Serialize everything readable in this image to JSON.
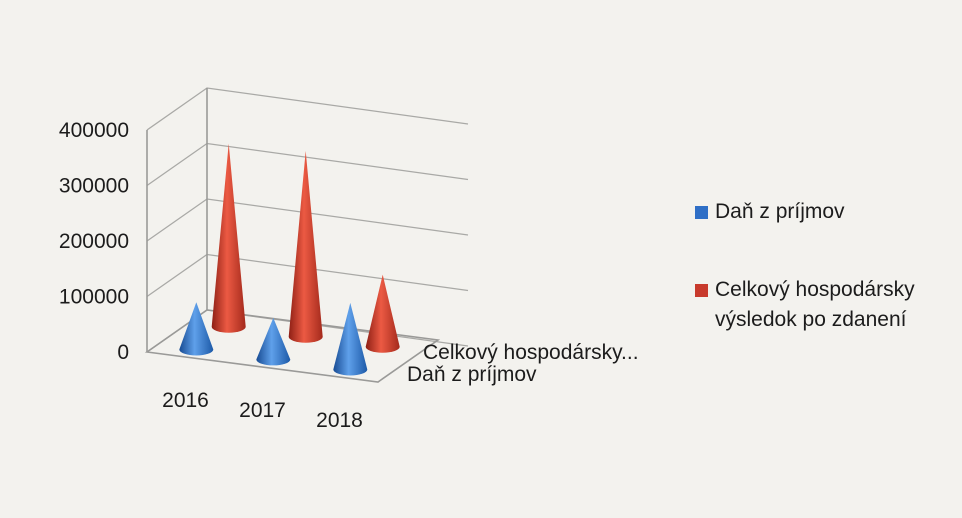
{
  "chart_data": {
    "type": "bar",
    "subtype": "3d-cone",
    "title": "",
    "xlabel": "",
    "ylabel": "",
    "categories": [
      "2016",
      "2017",
      "2018"
    ],
    "series": [
      {
        "name": "Daň z príjmov",
        "values": [
          85000,
          75000,
          120000
        ],
        "color": "#2f6fc6"
      },
      {
        "name": "Celkový hospodársky výsledok po zdanení",
        "values": [
          330000,
          335000,
          130000
        ],
        "color": "#c83a2c"
      }
    ],
    "depth_labels": [
      "Celkový hospodársky...",
      "Daň z príjmov"
    ],
    "y_ticks": [
      0,
      100000,
      200000,
      300000,
      400000
    ],
    "ylim": [
      0,
      400000
    ],
    "grid": true,
    "legend_position": "right",
    "legend_lines": [
      [
        "Daň z príjmov"
      ],
      [
        "Celkový hospodársky",
        "výsledok po zdanení"
      ]
    ]
  }
}
